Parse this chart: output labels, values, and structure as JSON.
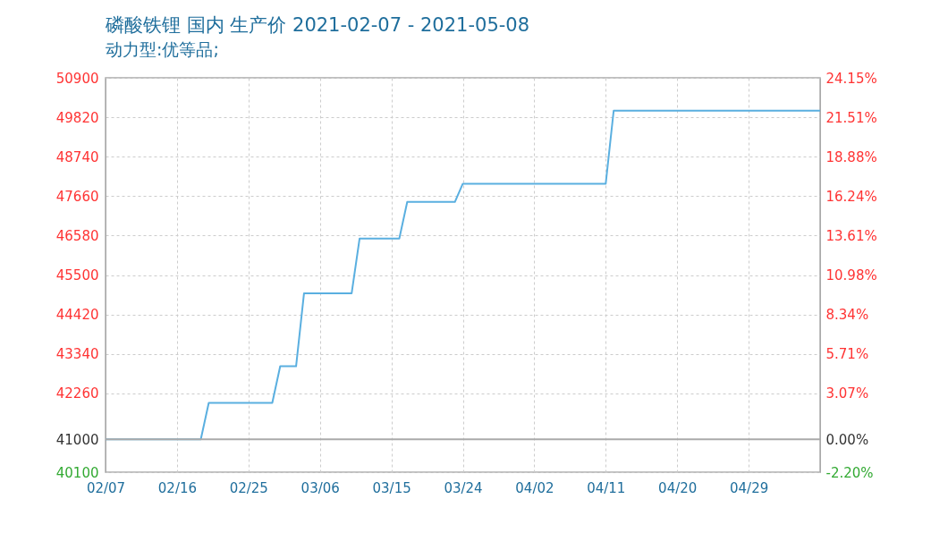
{
  "chart_data": {
    "type": "line",
    "title": "磷酸铁锂 国内 生产价 2021-02-07 - 2021-05-08",
    "subtitle": "动力型:优等品;",
    "x": [
      "2021-02-07",
      "2021-02-19",
      "2021-02-20",
      "2021-02-28",
      "2021-03-01",
      "2021-03-03",
      "2021-03-04",
      "2021-03-10",
      "2021-03-11",
      "2021-03-16",
      "2021-03-17",
      "2021-03-23",
      "2021-03-24",
      "2021-04-11",
      "2021-04-12",
      "2021-05-08"
    ],
    "series": [
      {
        "color": "#5aafe0",
        "values": [
          41000,
          41000,
          42000,
          42000,
          43000,
          43000,
          45000,
          45000,
          46500,
          46500,
          47500,
          47500,
          48000,
          48000,
          50000,
          50000
        ]
      }
    ],
    "xlim": [
      "2021-02-07",
      "2021-05-08"
    ],
    "xticks": [
      {
        "value": "2021-02-07",
        "label": "02/07"
      },
      {
        "value": "2021-02-16",
        "label": "02/16"
      },
      {
        "value": "2021-02-25",
        "label": "02/25"
      },
      {
        "value": "2021-03-06",
        "label": "03/06"
      },
      {
        "value": "2021-03-15",
        "label": "03/15"
      },
      {
        "value": "2021-03-24",
        "label": "03/24"
      },
      {
        "value": "2021-04-02",
        "label": "04/02"
      },
      {
        "value": "2021-04-11",
        "label": "04/11"
      },
      {
        "value": "2021-04-20",
        "label": "04/20"
      },
      {
        "value": "2021-04-29",
        "label": "04/29"
      }
    ],
    "ylim": [
      40100,
      50900
    ],
    "yticks": [
      40100,
      41000,
      42260,
      43340,
      44420,
      45500,
      46580,
      47660,
      48740,
      49820,
      50900
    ],
    "y2lim": [
      -2.2,
      24.15
    ],
    "y2ticks": [
      {
        "value": -2.2,
        "label": "-2.20%"
      },
      {
        "value": 0,
        "label": "0.00%"
      },
      {
        "value": 3.07,
        "label": "3.07%"
      },
      {
        "value": 5.71,
        "label": "5.71%"
      },
      {
        "value": 8.34,
        "label": "8.34%"
      },
      {
        "value": 10.98,
        "label": "10.98%"
      },
      {
        "value": 13.61,
        "label": "13.61%"
      },
      {
        "value": 16.24,
        "label": "16.24%"
      },
      {
        "value": 18.88,
        "label": "18.88%"
      },
      {
        "value": 21.51,
        "label": "21.51%"
      },
      {
        "value": 24.15,
        "label": "24.15%"
      }
    ],
    "ref_lines": [
      {
        "axis": "y",
        "value": 41000,
        "color": "#aaaaaa"
      }
    ],
    "grid": true,
    "marker": "none",
    "line_style": "solid"
  }
}
